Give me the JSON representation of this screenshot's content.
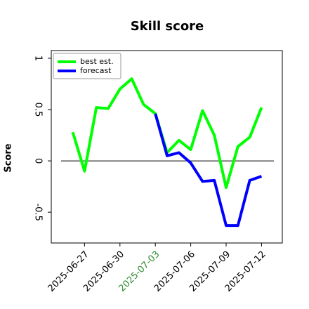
{
  "chart_data": {
    "type": "line",
    "title": "Skill score",
    "ylabel": "Score",
    "x": [
      "2025-06-26",
      "2025-06-27",
      "2025-06-28",
      "2025-06-29",
      "2025-06-30",
      "2025-07-01",
      "2025-07-02",
      "2025-07-03",
      "2025-07-04",
      "2025-07-05",
      "2025-07-06",
      "2025-07-07",
      "2025-07-08",
      "2025-07-09",
      "2025-07-10",
      "2025-07-11",
      "2025-07-12"
    ],
    "series": [
      {
        "name": "best est.",
        "color": "#00ff00",
        "values": [
          0.28,
          -0.1,
          0.52,
          0.51,
          0.7,
          0.8,
          0.55,
          0.46,
          0.08,
          0.2,
          0.11,
          0.49,
          0.25,
          -0.26,
          0.14,
          0.23,
          0.52
        ]
      },
      {
        "name": "forecast",
        "color": "#0000ff",
        "values": [
          null,
          null,
          null,
          null,
          null,
          null,
          null,
          0.46,
          0.05,
          0.08,
          -0.02,
          -0.2,
          -0.19,
          -0.63,
          -0.63,
          -0.19,
          -0.15
        ]
      }
    ],
    "xlim": [
      "2025-06-24",
      "2025-07-14"
    ],
    "xticks": [
      "2025-06-27",
      "2025-06-30",
      "2025-07-03",
      "2025-07-06",
      "2025-07-09",
      "2025-07-12"
    ],
    "xtick_colors": [
      "#000000",
      "#000000",
      "#2e8b2e",
      "#000000",
      "#000000",
      "#000000"
    ],
    "ylim": [
      -0.8,
      1.075
    ],
    "yticks": [
      -0.5,
      0.0,
      0.5,
      1.0
    ],
    "hline": 0,
    "legend": "upper-left"
  }
}
